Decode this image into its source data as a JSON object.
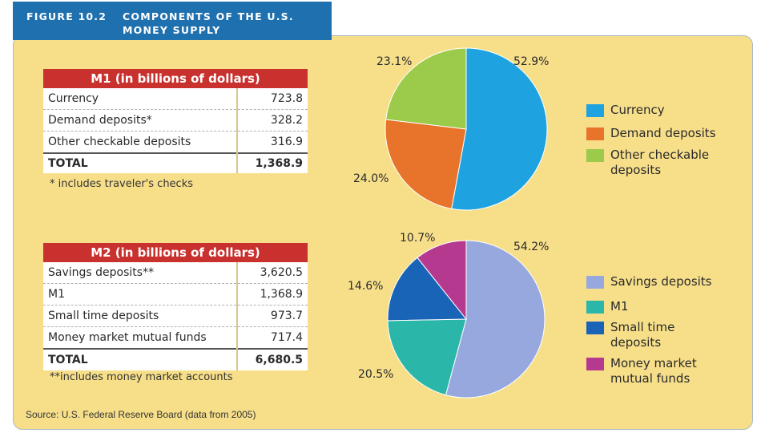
{
  "figure": {
    "number": "FIGURE 10.2",
    "title_line1": "COMPONENTS OF THE U.S.",
    "title_line2": "MONEY SUPPLY"
  },
  "m1_table": {
    "title": "M1 (in billions of dollars)",
    "rows": [
      {
        "label": "Currency",
        "value": "723.8"
      },
      {
        "label": "Demand deposits*",
        "value": "328.2"
      },
      {
        "label": "Other checkable deposits",
        "value": "316.9"
      }
    ],
    "total_label": "TOTAL",
    "total_value": "1,368.9",
    "note": "* includes traveler's checks"
  },
  "m2_table": {
    "title": "M2 (in billions of dollars)",
    "rows": [
      {
        "label": "Savings deposits**",
        "value": "3,620.5"
      },
      {
        "label": "M1",
        "value": "1,368.9"
      },
      {
        "label": "Small time deposits",
        "value": "973.7"
      },
      {
        "label": "Money market mutual funds",
        "value": "717.4"
      }
    ],
    "total_label": "TOTAL",
    "total_value": "6,680.5",
    "note": "**includes money market accounts"
  },
  "source": "Source: U.S. Federal Reserve Board (data from 2005)",
  "chart_data": [
    {
      "type": "pie",
      "title": "M1",
      "slices": [
        {
          "name": "Currency",
          "value": 52.9,
          "label": "52.9%",
          "color": "#1fa3e0"
        },
        {
          "name": "Demand deposits",
          "value": 24.0,
          "label": "24.0%",
          "color": "#e8732a"
        },
        {
          "name": "Other checkable deposits",
          "value": 23.1,
          "label": "23.1%",
          "color": "#9cca4a"
        }
      ],
      "legend": [
        {
          "line1": "Currency",
          "line2": "",
          "color": "#1fa3e0"
        },
        {
          "line1": "Demand deposits",
          "line2": "",
          "color": "#e8732a"
        },
        {
          "line1": "Other checkable",
          "line2": "deposits",
          "color": "#9cca4a"
        }
      ]
    },
    {
      "type": "pie",
      "title": "M2",
      "slices": [
        {
          "name": "Savings deposits",
          "value": 54.2,
          "label": "54.2%",
          "color": "#96a8dd"
        },
        {
          "name": "M1",
          "value": 20.5,
          "label": "20.5%",
          "color": "#2ab6a8"
        },
        {
          "name": "Small time deposits",
          "value": 14.6,
          "label": "14.6%",
          "color": "#1a64b8"
        },
        {
          "name": "Money market mutual funds",
          "value": 10.7,
          "label": "10.7%",
          "color": "#b53a8f"
        }
      ],
      "legend": [
        {
          "line1": "Savings deposits",
          "line2": "",
          "color": "#96a8dd"
        },
        {
          "line1": "M1",
          "line2": "",
          "color": "#2ab6a8"
        },
        {
          "line1": "Small time",
          "line2": "deposits",
          "color": "#1a64b8"
        },
        {
          "line1": "Money market",
          "line2": "mutual funds",
          "color": "#b53a8f"
        }
      ]
    }
  ]
}
